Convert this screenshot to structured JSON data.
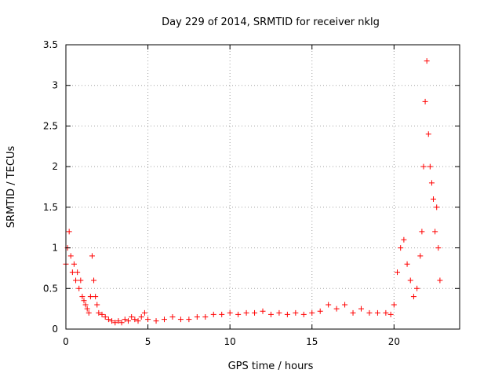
{
  "chart_data": {
    "type": "scatter",
    "title": "Day 229 of 2014, SRMTID for receiver nklg",
    "xlabel": "GPS time / hours",
    "ylabel": "SRMTID / TECUs",
    "xlim": [
      0,
      24
    ],
    "ylim": [
      0,
      3.5
    ],
    "xticks": [
      0,
      5,
      10,
      15,
      20
    ],
    "yticks": [
      0,
      0.5,
      1,
      1.5,
      2,
      2.5,
      3,
      3.5
    ],
    "xtick_labels": [
      "0",
      "5",
      "10",
      "15",
      "20"
    ],
    "ytick_labels": [
      "0",
      "0.5",
      "1",
      "1.5",
      "2",
      "2.5",
      "3",
      "3.5"
    ],
    "grid": true,
    "marker": "+",
    "color": "#ff0000",
    "series": [
      {
        "name": "SRMTID",
        "x": [
          0.0,
          0.1,
          0.2,
          0.3,
          0.4,
          0.5,
          0.6,
          0.7,
          0.8,
          0.9,
          1.0,
          1.1,
          1.2,
          1.3,
          1.4,
          1.5,
          1.6,
          1.7,
          1.8,
          1.9,
          2.0,
          2.2,
          2.4,
          2.6,
          2.8,
          3.0,
          3.2,
          3.4,
          3.6,
          3.8,
          4.0,
          4.2,
          4.4,
          4.6,
          4.8,
          5.0,
          5.5,
          6.0,
          6.5,
          7.0,
          7.5,
          8.0,
          8.5,
          9.0,
          9.5,
          10.0,
          10.5,
          11.0,
          11.5,
          12.0,
          12.5,
          13.0,
          13.5,
          14.0,
          14.5,
          15.0,
          15.5,
          16.0,
          16.5,
          17.0,
          17.5,
          18.0,
          18.5,
          19.0,
          19.5,
          19.8,
          20.0,
          20.2,
          20.4,
          20.6,
          20.8,
          21.0,
          21.2,
          21.4,
          21.6,
          21.7,
          21.8,
          21.9,
          22.0,
          22.1,
          22.2,
          22.3,
          22.4,
          22.5,
          22.6,
          22.7,
          22.8
        ],
        "y": [
          0.8,
          1.0,
          1.2,
          0.9,
          0.7,
          0.8,
          0.6,
          0.7,
          0.5,
          0.6,
          0.4,
          0.35,
          0.3,
          0.25,
          0.2,
          0.4,
          0.9,
          0.6,
          0.4,
          0.3,
          0.2,
          0.18,
          0.15,
          0.12,
          0.1,
          0.08,
          0.1,
          0.08,
          0.12,
          0.1,
          0.15,
          0.12,
          0.1,
          0.15,
          0.2,
          0.12,
          0.1,
          0.12,
          0.15,
          0.12,
          0.12,
          0.15,
          0.15,
          0.18,
          0.18,
          0.2,
          0.18,
          0.2,
          0.2,
          0.22,
          0.18,
          0.2,
          0.18,
          0.2,
          0.18,
          0.2,
          0.22,
          0.3,
          0.25,
          0.3,
          0.2,
          0.25,
          0.2,
          0.2,
          0.2,
          0.18,
          0.3,
          0.7,
          1.0,
          1.1,
          0.8,
          0.6,
          0.4,
          0.5,
          0.9,
          1.2,
          2.0,
          2.8,
          3.3,
          2.4,
          2.0,
          1.8,
          1.6,
          1.2,
          1.5,
          1.0,
          0.6
        ]
      }
    ]
  }
}
